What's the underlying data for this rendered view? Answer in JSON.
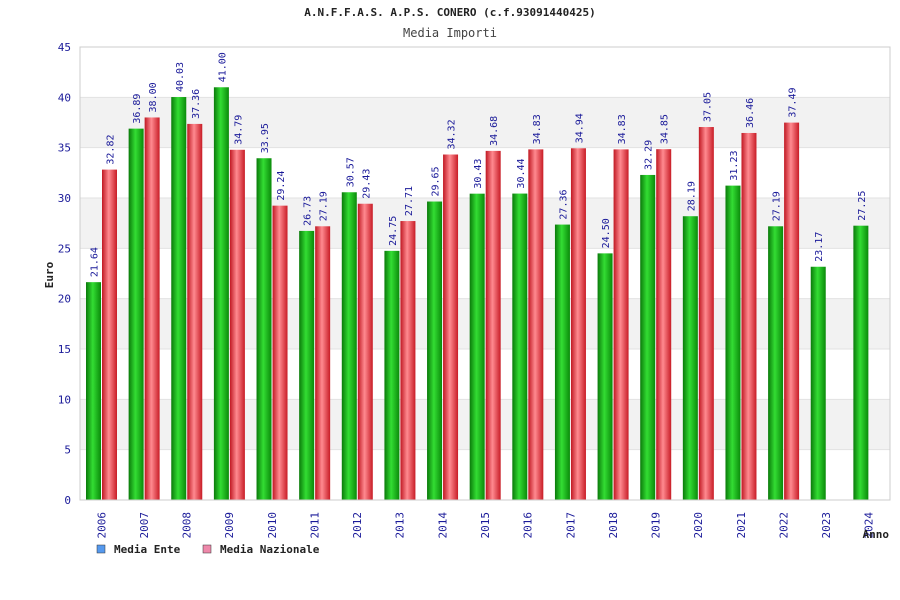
{
  "chart_data": {
    "type": "bar",
    "title": "A.N.F.F.A.S. A.P.S. CONERO (c.f.93091440425)",
    "subtitle": "Media Importi",
    "xlabel": "Anno",
    "ylabel": "Euro",
    "ylim": [
      0,
      45
    ],
    "yticks": [
      "0",
      "5",
      "10",
      "15",
      "20",
      "25",
      "30",
      "35",
      "40",
      "45"
    ],
    "grid": true,
    "legend_position": "bottom-left",
    "categories": [
      "2006",
      "2007",
      "2008",
      "2009",
      "2010",
      "2011",
      "2012",
      "2013",
      "2014",
      "2015",
      "2016",
      "2017",
      "2018",
      "2019",
      "2020",
      "2021",
      "2022",
      "2023",
      "2024"
    ],
    "series": [
      {
        "name": "Media Ente",
        "color": "#11bb11",
        "values": [
          21.64,
          36.89,
          40.03,
          41.0,
          33.95,
          26.73,
          30.57,
          24.75,
          29.65,
          30.43,
          30.44,
          27.36,
          24.5,
          32.29,
          28.19,
          31.23,
          27.19,
          23.17,
          27.25
        ],
        "labels": [
          "21.64",
          "36.89",
          "40.03",
          "41.00",
          "33.95",
          "26.73",
          "30.57",
          "24.75",
          "29.65",
          "30.43",
          "30.44",
          "27.36",
          "24.50",
          "32.29",
          "28.19",
          "31.23",
          "27.19",
          "23.17",
          "27.25"
        ]
      },
      {
        "name": "Media Nazionale",
        "color": "#e8303a",
        "values": [
          32.82,
          38.0,
          37.36,
          34.79,
          29.24,
          27.19,
          29.43,
          27.71,
          34.32,
          34.68,
          34.83,
          34.94,
          34.83,
          34.85,
          37.05,
          36.46,
          37.49,
          null,
          null
        ],
        "labels": [
          "32.82",
          "38.00",
          "37.36",
          "34.79",
          "29.24",
          "27.19",
          "29.43",
          "27.71",
          "34.32",
          "34.68",
          "34.83",
          "34.94",
          "34.83",
          "34.85",
          "37.05",
          "36.46",
          "37.49",
          null,
          null
        ]
      }
    ],
    "legend": [
      {
        "name": "Media Ente",
        "swatch": "#5599ee"
      },
      {
        "name": "Media Nazionale",
        "swatch": "#ee88aa"
      }
    ]
  }
}
